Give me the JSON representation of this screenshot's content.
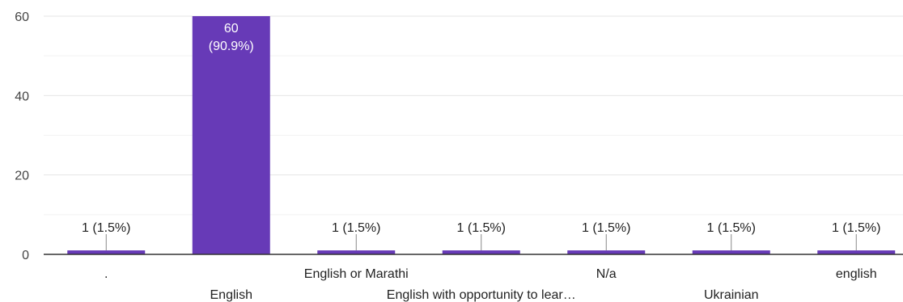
{
  "chart_data": {
    "type": "bar",
    "title": "",
    "xlabel": "",
    "ylabel": "",
    "ylim": [
      0,
      60
    ],
    "yticks": [
      0,
      20,
      40,
      60
    ],
    "grid": true,
    "categories": [
      ".",
      "English",
      "English or Marathi",
      "English with opportunity to lear…",
      "N/a",
      "Ukrainian",
      "english"
    ],
    "values": [
      1,
      60,
      1,
      1,
      1,
      1,
      1
    ],
    "data_labels": [
      "1 (1.5%)",
      "60 (90.9%)",
      "1 (1.5%)",
      "1 (1.5%)",
      "1 (1.5%)",
      "1 (1.5%)",
      "1 (1.5%)"
    ],
    "label_lines": [
      [
        "1 (1.5%)"
      ],
      [
        "60",
        "(90.9%)"
      ],
      [
        "1 (1.5%)"
      ],
      [
        "1 (1.5%)"
      ],
      [
        "1 (1.5%)"
      ],
      [
        "1 (1.5%)"
      ],
      [
        "1 (1.5%)"
      ]
    ],
    "bar_color": "#673ab7",
    "gridline_color": "#e6e6e6",
    "axis_color": "#333333"
  }
}
